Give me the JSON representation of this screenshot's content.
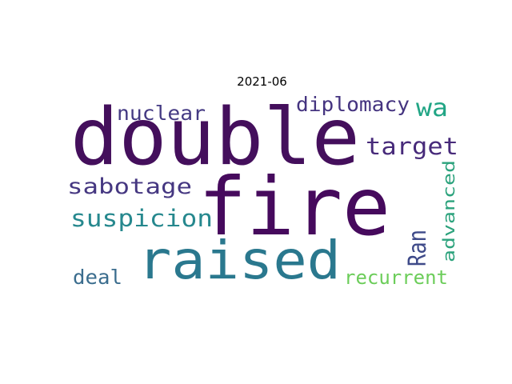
{
  "title": "2021-06",
  "words": [
    {
      "text": "double",
      "color": "#440f5c"
    },
    {
      "text": "fire",
      "color": "#460a5d"
    },
    {
      "text": "raised",
      "color": "#2a788e"
    },
    {
      "text": "suspicion",
      "color": "#26888e"
    },
    {
      "text": "sabotage",
      "color": "#453781"
    },
    {
      "text": "target",
      "color": "#472a7a"
    },
    {
      "text": "diplomacy",
      "color": "#453480"
    },
    {
      "text": "nuclear",
      "color": "#443a83"
    },
    {
      "text": "wa",
      "color": "#21a585"
    },
    {
      "text": "Ran",
      "color": "#3e4a89"
    },
    {
      "text": "advanced",
      "color": "#2da37d"
    },
    {
      "text": "recurrent",
      "color": "#6ccd5a"
    },
    {
      "text": "deal",
      "color": "#3b6d8e"
    }
  ]
}
